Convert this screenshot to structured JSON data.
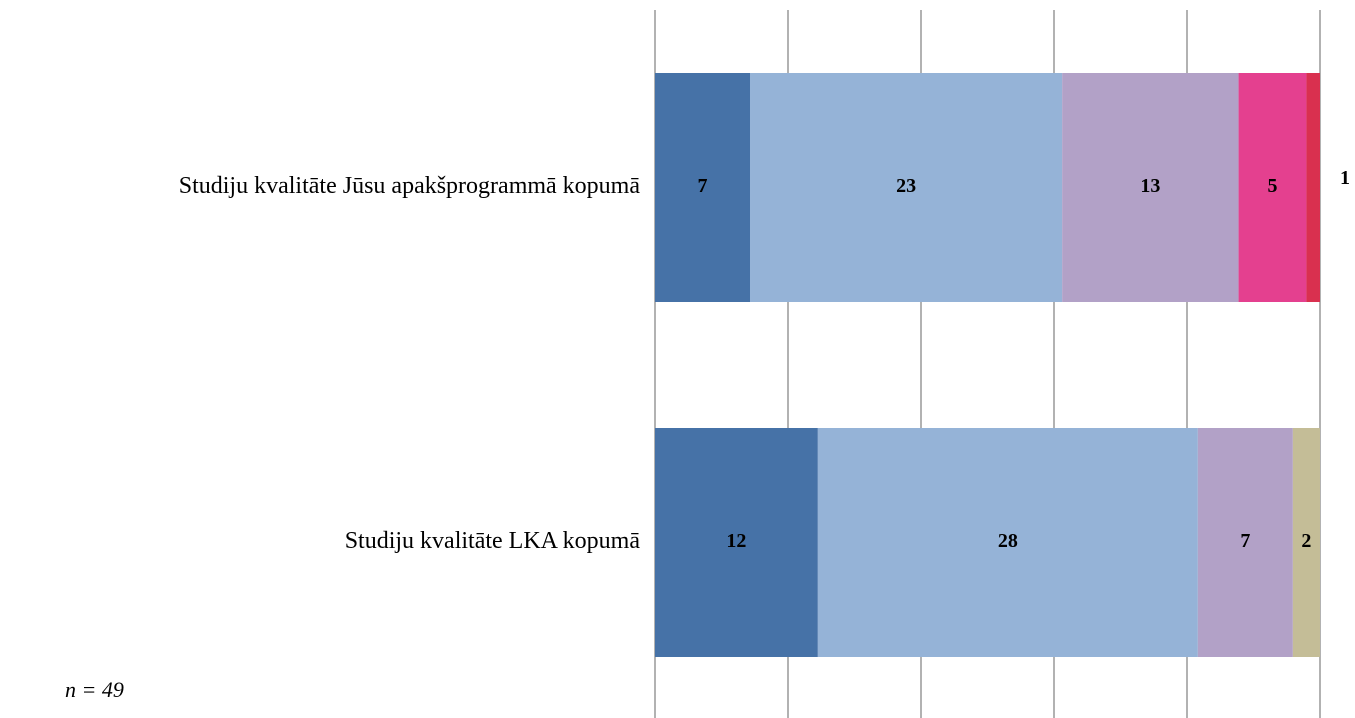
{
  "chart_data": {
    "type": "stacked_barh",
    "categories": [
      "Studiju kvalitāte Jūsu apakšprogrammā kopumā",
      "Studiju kvalitāte LKA kopumā"
    ],
    "series": [
      {
        "color": "#4672a7",
        "values": [
          7,
          12
        ]
      },
      {
        "color": "#95b3d7",
        "values": [
          23,
          28
        ]
      },
      {
        "color": "#b2a1c7",
        "values": [
          13,
          7
        ]
      },
      {
        "color": "#e4408f",
        "values": [
          5,
          null
        ]
      },
      {
        "color": "#d9304f",
        "values": [
          1,
          null
        ]
      },
      {
        "color": "#c4bd97",
        "values": [
          null,
          2
        ]
      }
    ],
    "xlim": [
      0,
      49
    ],
    "xticks": [
      0,
      9.8,
      19.6,
      29.4,
      39.2,
      49
    ],
    "grid": true,
    "note": "n = 49"
  }
}
